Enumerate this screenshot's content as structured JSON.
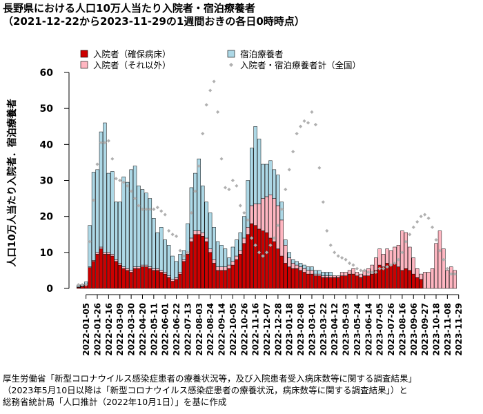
{
  "title": "長野県における人口10万人当たり入院者・宿泊療養者",
  "subtitle": "（2021-12-22から2023-11-29の1週間おきの各日0時時点）",
  "source_lines": [
    "厚生労働省「新型コロナウイルス感染症患者の療養状況等，及び入院患者受入病床数等に関する調査結果」",
    "（2023年5月10日以降は「新型コロナウイルス感染症患者の療養状況，病床数等に関する調査結果」）と",
    "総務省統計局「人口推計（2022年10月1日）」を基に作成"
  ],
  "chart_data": {
    "type": "bar",
    "stacked": true,
    "ylabel": "人口10万人当たり入院者．宿泊療養者",
    "ylim": [
      0,
      60
    ],
    "yticks": [
      0,
      10,
      20,
      30,
      40,
      50,
      60
    ],
    "grid": false,
    "legend_position": "top",
    "legend": [
      {
        "label": "入院者（確保病床）",
        "kind": "box",
        "color": "#cc0000"
      },
      {
        "label": "宿泊療養者",
        "kind": "box",
        "color": "#add8e6"
      },
      {
        "label": "入院者（それ以外）",
        "kind": "box",
        "color": "#ffb6c1"
      },
      {
        "label": "入院者・宿泊療養者計（全国）",
        "kind": "dot",
        "color": "#b0b0b0"
      }
    ],
    "tick_labels": [
      "2022-01-05",
      "2022-01-26",
      "2022-02-16",
      "2022-03-09",
      "2022-03-30",
      "2022-04-20",
      "2022-05-11",
      "2022-06-01",
      "2022-06-22",
      "2022-07-13",
      "2022-08-03",
      "2022-08-24",
      "2022-09-14",
      "2022-10-05",
      "2022-10-26",
      "2022-11-16",
      "2022-12-07",
      "2022-12-28",
      "2023-01-18",
      "2023-02-08",
      "2023-03-01",
      "2023-03-22",
      "2023-04-12",
      "2023-05-03",
      "2023-05-24",
      "2023-06-14",
      "2023-07-05",
      "2023-07-26",
      "2023-08-16",
      "2023-09-06",
      "2023-09-27",
      "2023-10-18",
      "2023-11-08",
      "2023-11-29"
    ],
    "x_start": "2021-12-22",
    "x_interval_days": 7,
    "series": [
      {
        "name": "入院者（確保病床）",
        "color": "#cc0000",
        "values": [
          0.3,
          0.5,
          1.0,
          5.8,
          7.5,
          9.5,
          11.0,
          9.5,
          9.5,
          9.0,
          7.5,
          6.5,
          5.5,
          5.0,
          4.5,
          5.5,
          5.5,
          6.0,
          6.0,
          5.5,
          5.0,
          5.0,
          4.5,
          4.0,
          3.0,
          2.0,
          2.5,
          4.0,
          7.5,
          9.5,
          13.0,
          15.0,
          15.0,
          14.5,
          13.0,
          10.0,
          7.0,
          5.0,
          5.0,
          5.0,
          5.5,
          6.5,
          8.0,
          9.5,
          12.5,
          15.0,
          18.0,
          17.5,
          16.5,
          16.0,
          15.5,
          14.0,
          13.0,
          11.0,
          9.0,
          7.0,
          6.0,
          5.5,
          5.5,
          5.0,
          4.5,
          4.0,
          4.0,
          3.5,
          3.5,
          3.0,
          3.0,
          3.0,
          3.0,
          3.0,
          3.5,
          3.5,
          4.0,
          4.0,
          3.5,
          3.0,
          3.5,
          3.5,
          4.0,
          5.0,
          6.5,
          6.0,
          7.0,
          6.5,
          7.0,
          6.0,
          5.0,
          5.5,
          5.0,
          4.0,
          3.0,
          2.5,
          0.0,
          0.0,
          0.0,
          0.0,
          0.0,
          0.0,
          0.0,
          0.0,
          0.0
        ]
      },
      {
        "name": "入院者（それ以外）",
        "color": "#ffb6c1",
        "values": [
          0.1,
          0.1,
          0.2,
          0.2,
          0.3,
          0.5,
          0.5,
          0.5,
          0.5,
          0.5,
          0.5,
          0.5,
          0.5,
          0.5,
          0.5,
          0.5,
          0.5,
          0.5,
          0.5,
          0.5,
          0.5,
          0.5,
          0.5,
          0.5,
          0.5,
          0.5,
          0.5,
          0.5,
          0.5,
          0.5,
          1.0,
          1.0,
          1.0,
          1.0,
          1.0,
          1.0,
          1.0,
          1.0,
          1.0,
          1.0,
          1.0,
          1.0,
          1.0,
          1.0,
          1.5,
          2.0,
          5.0,
          6.0,
          7.0,
          9.0,
          10.0,
          12.0,
          12.0,
          12.0,
          10.0,
          5.0,
          2.5,
          1.5,
          1.0,
          1.0,
          1.0,
          1.0,
          1.0,
          0.5,
          0.5,
          0.5,
          0.5,
          0.5,
          0.5,
          0.5,
          1.0,
          1.0,
          1.0,
          1.5,
          1.0,
          1.0,
          1.5,
          2.0,
          2.5,
          3.5,
          4.5,
          3.5,
          4.0,
          4.0,
          4.5,
          6.0,
          11.0,
          10.0,
          6.5,
          4.5,
          2.5,
          1.5,
          4.5,
          4.5,
          5.5,
          12.5,
          16.0,
          11.0,
          5.0,
          6.0,
          5.0
        ]
      },
      {
        "name": "宿泊療養者",
        "color": "#add8e6",
        "values": [
          0.4,
          0.5,
          0.6,
          11.5,
          24.5,
          23.0,
          32.0,
          36.0,
          22.0,
          23.0,
          16.0,
          17.0,
          25.0,
          24.0,
          28.0,
          28.0,
          22.5,
          21.0,
          20.0,
          19.0,
          14.0,
          10.0,
          12.0,
          9.0,
          8.5,
          6.5,
          4.5,
          5.0,
          2.5,
          8.0,
          14.0,
          16.0,
          20.0,
          13.0,
          10.0,
          10.0,
          9.0,
          7.0,
          6.0,
          5.0,
          2.0,
          4.0,
          4.5,
          5.0,
          6.0,
          13.0,
          16.0,
          21.5,
          18.0,
          9.5,
          9.0,
          9.5,
          8.0,
          8.5,
          5.0,
          1.5,
          1.5,
          1.0,
          1.0,
          1.0,
          1.0,
          1.0,
          1.0,
          1.0,
          1.0,
          1.0,
          1.0,
          1.0,
          0.0,
          0.0,
          0.0,
          0.0,
          0.0,
          0.0,
          0.0,
          0.0,
          0.0,
          0.0,
          0.0,
          0.0,
          0.0,
          0.0,
          0.0,
          0.0,
          0.0,
          0.0,
          0.0,
          0.0,
          0.0,
          0.0,
          0.0,
          0.0,
          0.0,
          0.0,
          0.0,
          0.0,
          0.0,
          0.0,
          0.0,
          0.0,
          0.0
        ]
      },
      {
        "name": "入院者・宿泊療養者計（全国）",
        "color": "#b0b0b0",
        "kind": "points",
        "values": [
          1.0,
          1.0,
          1.0,
          13.0,
          24.5,
          34.5,
          40.5,
          40.5,
          41.0,
          36.0,
          30.5,
          30.0,
          29.5,
          28.5,
          27.0,
          25.0,
          23.0,
          22.0,
          22.0,
          22.0,
          22.0,
          22.5,
          21.5,
          20.5,
          16.0,
          15.0,
          14.5,
          10.5,
          9.0,
          10.0,
          21.0,
          27.0,
          34.0,
          43.0,
          51.0,
          55.0,
          57.5,
          49.0,
          36.0,
          28.0,
          27.5,
          30.0,
          28.5,
          23.0,
          21.0,
          19.0,
          14.0,
          12.0,
          10.0,
          9.0,
          10.0,
          12.0,
          14.0,
          17.5,
          22.0,
          27.5,
          33.0,
          38.0,
          43.0,
          45.0,
          46.5,
          46.0,
          49.0,
          45.5,
          33.5,
          24.0,
          16.0,
          12.0,
          10.0,
          9.0,
          8.5,
          8.0,
          7.0,
          6.5,
          5.5,
          5.0,
          5.0,
          4.5,
          4.5,
          4.5,
          5.5,
          5.5,
          6.0,
          6.5,
          7.0,
          8.0,
          10.0,
          13.0,
          15.0,
          17.0,
          18.5,
          20.0,
          20.5,
          19.5,
          17.0,
          13.5,
          10.5,
          8.0,
          5.5,
          4.0,
          4.0
        ]
      }
    ]
  }
}
